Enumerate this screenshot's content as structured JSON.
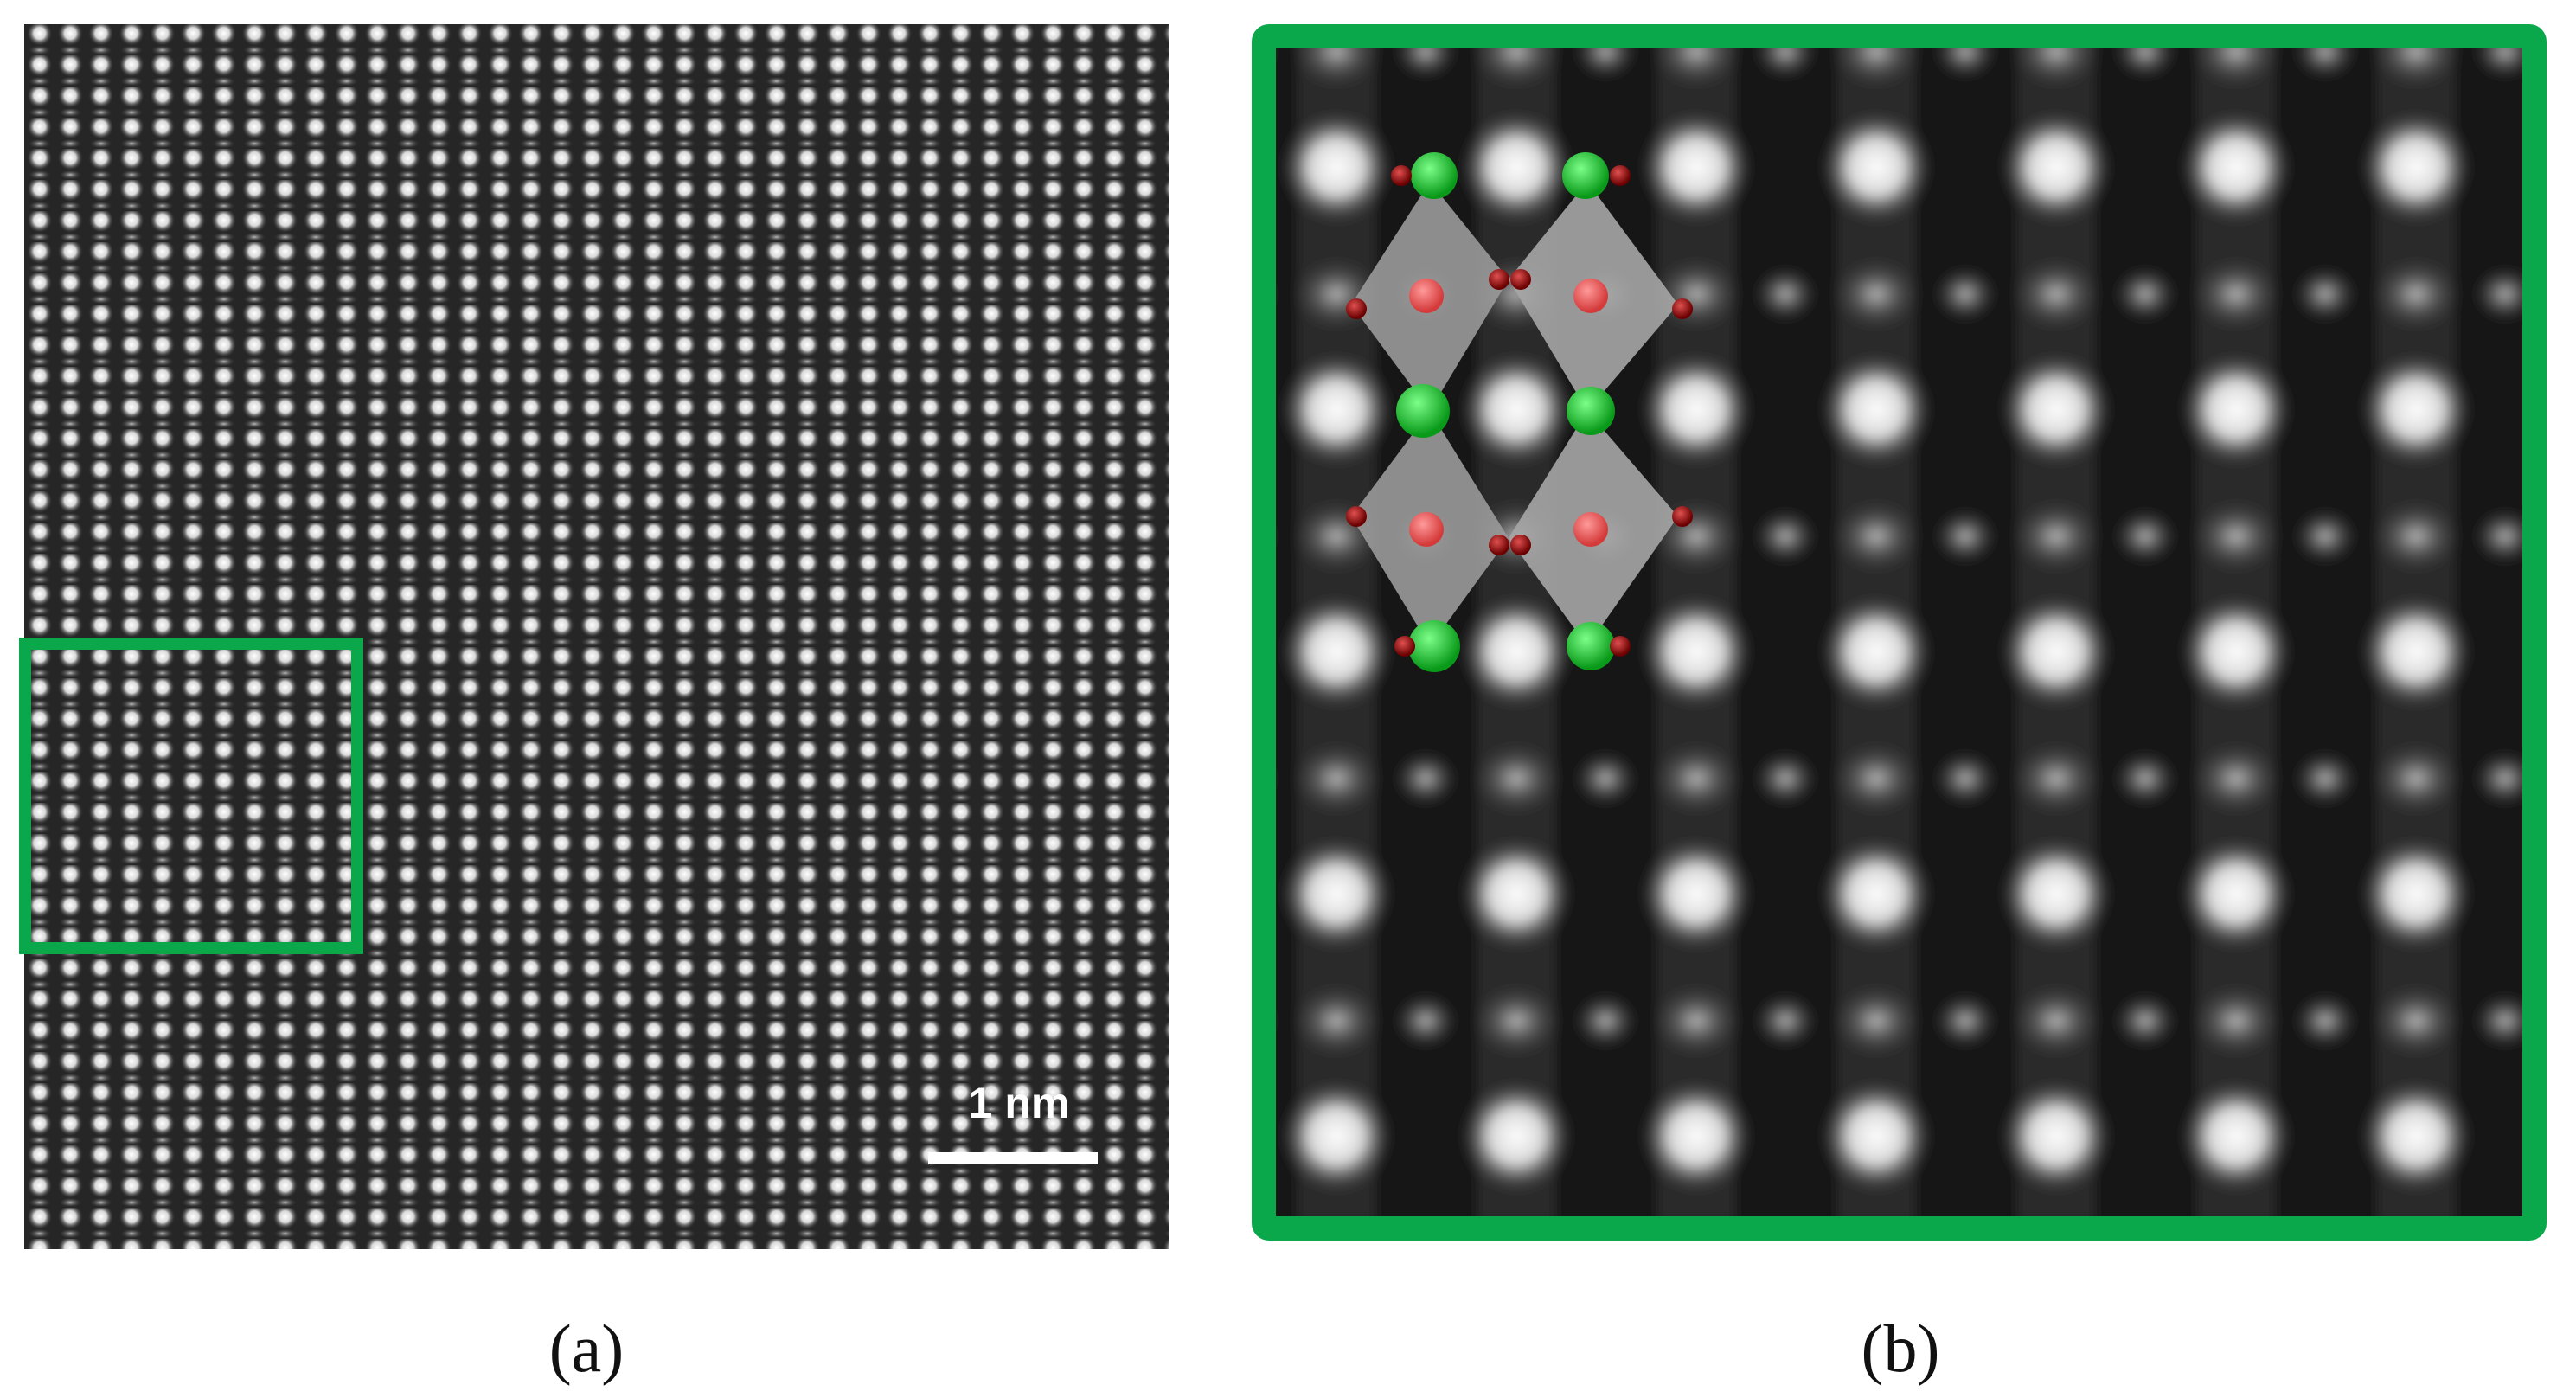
{
  "scale_bar": {
    "label": "1 nm"
  },
  "panels": [
    {
      "label": "(a)"
    },
    {
      "label": "(b)"
    }
  ]
}
